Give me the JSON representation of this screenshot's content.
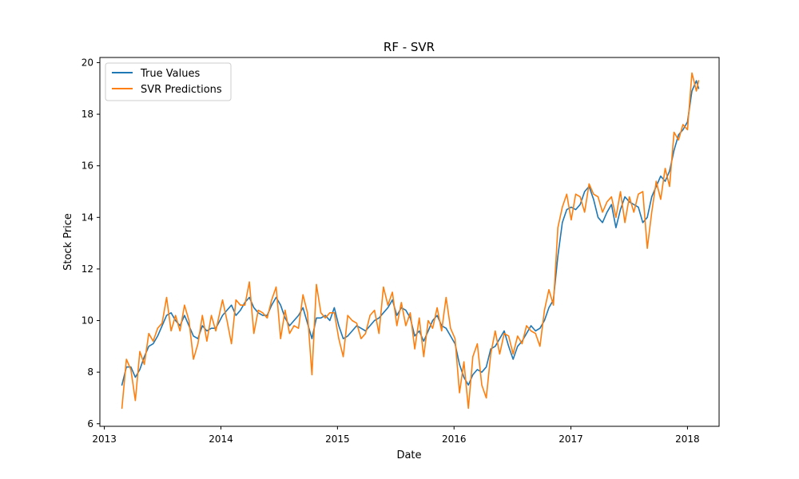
{
  "chart_data": {
    "type": "line",
    "title": "RF - SVR",
    "xlabel": "Date",
    "ylabel": "Stock Price",
    "xlim": [
      "2012-12-18",
      "2018-04-10"
    ],
    "ylim": [
      5.9,
      20.2
    ],
    "x_ticks": [
      "2013-01-01",
      "2014-01-01",
      "2015-01-01",
      "2016-01-01",
      "2017-01-01",
      "2018-01-01"
    ],
    "x_tick_labels": [
      "2013",
      "2014",
      "2015",
      "2016",
      "2017",
      "2018"
    ],
    "y_ticks": [
      6,
      8,
      10,
      12,
      14,
      16,
      18,
      20
    ],
    "y_tick_labels": [
      "6",
      "8",
      "10",
      "12",
      "14",
      "16",
      "18",
      "20"
    ],
    "grid": false,
    "legend_position": "top-left",
    "series": [
      {
        "name": "True Values",
        "color": "#1f77b4",
        "points": [
          [
            "2013-02-25",
            7.5
          ],
          [
            "2013-03-11",
            8.2
          ],
          [
            "2013-03-25",
            8.2
          ],
          [
            "2013-04-08",
            7.8
          ],
          [
            "2013-04-22",
            8.1
          ],
          [
            "2013-05-06",
            8.6
          ],
          [
            "2013-05-20",
            9.0
          ],
          [
            "2013-06-03",
            9.1
          ],
          [
            "2013-06-17",
            9.4
          ],
          [
            "2013-07-01",
            9.8
          ],
          [
            "2013-07-15",
            10.2
          ],
          [
            "2013-07-29",
            10.3
          ],
          [
            "2013-08-12",
            10.0
          ],
          [
            "2013-08-26",
            9.8
          ],
          [
            "2013-09-09",
            10.2
          ],
          [
            "2013-09-23",
            9.8
          ],
          [
            "2013-10-07",
            9.4
          ],
          [
            "2013-10-21",
            9.3
          ],
          [
            "2013-11-04",
            9.8
          ],
          [
            "2013-11-18",
            9.6
          ],
          [
            "2013-12-02",
            9.7
          ],
          [
            "2013-12-16",
            9.7
          ],
          [
            "2014-01-06",
            10.2
          ],
          [
            "2014-01-20",
            10.4
          ],
          [
            "2014-02-03",
            10.6
          ],
          [
            "2014-02-17",
            10.2
          ],
          [
            "2014-03-03",
            10.4
          ],
          [
            "2014-03-17",
            10.7
          ],
          [
            "2014-03-31",
            10.9
          ],
          [
            "2014-04-14",
            10.5
          ],
          [
            "2014-04-28",
            10.3
          ],
          [
            "2014-05-12",
            10.2
          ],
          [
            "2014-05-26",
            10.2
          ],
          [
            "2014-06-09",
            10.6
          ],
          [
            "2014-06-23",
            10.9
          ],
          [
            "2014-07-07",
            10.6
          ],
          [
            "2014-07-21",
            10.1
          ],
          [
            "2014-08-04",
            9.8
          ],
          [
            "2014-08-18",
            10.0
          ],
          [
            "2014-09-01",
            10.2
          ],
          [
            "2014-09-15",
            10.5
          ],
          [
            "2014-09-29",
            9.9
          ],
          [
            "2014-10-13",
            9.3
          ],
          [
            "2014-10-27",
            10.1
          ],
          [
            "2014-11-10",
            10.1
          ],
          [
            "2014-11-24",
            10.2
          ],
          [
            "2014-12-08",
            10.0
          ],
          [
            "2014-12-22",
            10.5
          ],
          [
            "2015-01-05",
            9.8
          ],
          [
            "2015-01-19",
            9.3
          ],
          [
            "2015-02-02",
            9.4
          ],
          [
            "2015-02-16",
            9.6
          ],
          [
            "2015-03-02",
            9.8
          ],
          [
            "2015-03-16",
            9.7
          ],
          [
            "2015-03-30",
            9.6
          ],
          [
            "2015-04-13",
            9.8
          ],
          [
            "2015-04-27",
            10.0
          ],
          [
            "2015-05-11",
            10.1
          ],
          [
            "2015-05-25",
            10.3
          ],
          [
            "2015-06-08",
            10.5
          ],
          [
            "2015-06-22",
            10.8
          ],
          [
            "2015-07-06",
            10.2
          ],
          [
            "2015-07-20",
            10.5
          ],
          [
            "2015-08-03",
            10.4
          ],
          [
            "2015-08-17",
            10.1
          ],
          [
            "2015-08-31",
            9.4
          ],
          [
            "2015-09-14",
            9.6
          ],
          [
            "2015-09-28",
            9.2
          ],
          [
            "2015-10-12",
            9.6
          ],
          [
            "2015-10-26",
            10.0
          ],
          [
            "2015-11-09",
            10.2
          ],
          [
            "2015-11-23",
            9.8
          ],
          [
            "2015-12-07",
            9.7
          ],
          [
            "2015-12-21",
            9.4
          ],
          [
            "2016-01-04",
            9.1
          ],
          [
            "2016-01-18",
            8.3
          ],
          [
            "2016-02-01",
            7.8
          ],
          [
            "2016-02-15",
            7.5
          ],
          [
            "2016-02-29",
            7.9
          ],
          [
            "2016-03-14",
            8.1
          ],
          [
            "2016-03-28",
            8.0
          ],
          [
            "2016-04-11",
            8.2
          ],
          [
            "2016-04-25",
            8.9
          ],
          [
            "2016-05-09",
            9.0
          ],
          [
            "2016-05-23",
            9.3
          ],
          [
            "2016-06-06",
            9.6
          ],
          [
            "2016-06-20",
            9.0
          ],
          [
            "2016-07-04",
            8.5
          ],
          [
            "2016-07-18",
            9.0
          ],
          [
            "2016-08-01",
            9.2
          ],
          [
            "2016-08-15",
            9.5
          ],
          [
            "2016-08-29",
            9.8
          ],
          [
            "2016-09-12",
            9.6
          ],
          [
            "2016-09-26",
            9.7
          ],
          [
            "2016-10-10",
            10.0
          ],
          [
            "2016-10-24",
            10.5
          ],
          [
            "2016-11-07",
            10.8
          ],
          [
            "2016-11-21",
            12.5
          ],
          [
            "2016-12-05",
            13.8
          ],
          [
            "2016-12-19",
            14.3
          ],
          [
            "2017-01-02",
            14.4
          ],
          [
            "2017-01-16",
            14.3
          ],
          [
            "2017-01-30",
            14.5
          ],
          [
            "2017-02-13",
            15.0
          ],
          [
            "2017-02-27",
            15.2
          ],
          [
            "2017-03-13",
            14.7
          ],
          [
            "2017-03-27",
            14.0
          ],
          [
            "2017-04-10",
            13.8
          ],
          [
            "2017-04-24",
            14.2
          ],
          [
            "2017-05-08",
            14.5
          ],
          [
            "2017-05-22",
            13.6
          ],
          [
            "2017-06-05",
            14.3
          ],
          [
            "2017-06-19",
            14.8
          ],
          [
            "2017-07-03",
            14.6
          ],
          [
            "2017-07-17",
            14.5
          ],
          [
            "2017-07-31",
            14.4
          ],
          [
            "2017-08-14",
            13.8
          ],
          [
            "2017-08-28",
            14.0
          ],
          [
            "2017-09-11",
            14.8
          ],
          [
            "2017-09-25",
            15.2
          ],
          [
            "2017-10-09",
            15.6
          ],
          [
            "2017-10-23",
            15.4
          ],
          [
            "2017-11-06",
            15.8
          ],
          [
            "2017-11-20",
            16.6
          ],
          [
            "2017-12-04",
            17.2
          ],
          [
            "2017-12-18",
            17.4
          ],
          [
            "2018-01-01",
            17.7
          ],
          [
            "2018-01-15",
            18.9
          ],
          [
            "2018-01-29",
            19.3
          ],
          [
            "2018-02-05",
            19.0
          ]
        ]
      },
      {
        "name": "SVR Predictions",
        "color": "#ff7f0e",
        "points": [
          [
            "2013-02-25",
            6.6
          ],
          [
            "2013-03-11",
            8.5
          ],
          [
            "2013-03-25",
            8.1
          ],
          [
            "2013-04-08",
            6.9
          ],
          [
            "2013-04-22",
            8.8
          ],
          [
            "2013-05-06",
            8.3
          ],
          [
            "2013-05-20",
            9.5
          ],
          [
            "2013-06-03",
            9.2
          ],
          [
            "2013-06-17",
            9.7
          ],
          [
            "2013-07-01",
            9.9
          ],
          [
            "2013-07-15",
            10.9
          ],
          [
            "2013-07-29",
            9.6
          ],
          [
            "2013-08-12",
            10.2
          ],
          [
            "2013-08-26",
            9.6
          ],
          [
            "2013-09-09",
            10.6
          ],
          [
            "2013-09-23",
            10.0
          ],
          [
            "2013-10-07",
            8.5
          ],
          [
            "2013-10-21",
            9.1
          ],
          [
            "2013-11-04",
            10.2
          ],
          [
            "2013-11-18",
            9.2
          ],
          [
            "2013-12-02",
            10.2
          ],
          [
            "2013-12-16",
            9.6
          ],
          [
            "2014-01-06",
            10.8
          ],
          [
            "2014-01-20",
            10.0
          ],
          [
            "2014-02-03",
            9.1
          ],
          [
            "2014-02-17",
            10.8
          ],
          [
            "2014-03-03",
            10.6
          ],
          [
            "2014-03-17",
            10.6
          ],
          [
            "2014-03-31",
            11.5
          ],
          [
            "2014-04-14",
            9.5
          ],
          [
            "2014-04-28",
            10.4
          ],
          [
            "2014-05-12",
            10.3
          ],
          [
            "2014-05-26",
            10.1
          ],
          [
            "2014-06-09",
            10.8
          ],
          [
            "2014-06-23",
            11.3
          ],
          [
            "2014-07-07",
            9.3
          ],
          [
            "2014-07-21",
            10.4
          ],
          [
            "2014-08-04",
            9.5
          ],
          [
            "2014-08-18",
            9.8
          ],
          [
            "2014-09-01",
            9.7
          ],
          [
            "2014-09-15",
            11.0
          ],
          [
            "2014-09-29",
            10.3
          ],
          [
            "2014-10-13",
            7.9
          ],
          [
            "2014-10-27",
            11.4
          ],
          [
            "2014-11-10",
            10.3
          ],
          [
            "2014-11-24",
            10.1
          ],
          [
            "2014-12-08",
            10.3
          ],
          [
            "2014-12-22",
            10.3
          ],
          [
            "2015-01-05",
            9.3
          ],
          [
            "2015-01-19",
            8.6
          ],
          [
            "2015-02-02",
            10.2
          ],
          [
            "2015-02-16",
            10.0
          ],
          [
            "2015-03-02",
            9.9
          ],
          [
            "2015-03-16",
            9.3
          ],
          [
            "2015-03-30",
            9.5
          ],
          [
            "2015-04-13",
            10.2
          ],
          [
            "2015-04-27",
            10.4
          ],
          [
            "2015-05-11",
            9.5
          ],
          [
            "2015-05-25",
            11.3
          ],
          [
            "2015-06-08",
            10.6
          ],
          [
            "2015-06-22",
            11.1
          ],
          [
            "2015-07-06",
            9.8
          ],
          [
            "2015-07-20",
            10.7
          ],
          [
            "2015-08-03",
            9.8
          ],
          [
            "2015-08-17",
            10.3
          ],
          [
            "2015-08-31",
            8.9
          ],
          [
            "2015-09-14",
            10.1
          ],
          [
            "2015-09-28",
            8.6
          ],
          [
            "2015-10-12",
            10.0
          ],
          [
            "2015-10-26",
            9.7
          ],
          [
            "2015-11-09",
            10.5
          ],
          [
            "2015-11-23",
            9.6
          ],
          [
            "2015-12-07",
            10.9
          ],
          [
            "2015-12-21",
            9.7
          ],
          [
            "2016-01-04",
            9.3
          ],
          [
            "2016-01-18",
            7.2
          ],
          [
            "2016-02-01",
            8.4
          ],
          [
            "2016-02-15",
            6.6
          ],
          [
            "2016-02-29",
            8.6
          ],
          [
            "2016-03-14",
            9.1
          ],
          [
            "2016-03-28",
            7.5
          ],
          [
            "2016-04-11",
            7.0
          ],
          [
            "2016-04-25",
            8.7
          ],
          [
            "2016-05-09",
            9.6
          ],
          [
            "2016-05-23",
            8.7
          ],
          [
            "2016-06-06",
            9.5
          ],
          [
            "2016-06-20",
            9.4
          ],
          [
            "2016-07-04",
            8.7
          ],
          [
            "2016-07-18",
            9.4
          ],
          [
            "2016-08-01",
            9.1
          ],
          [
            "2016-08-15",
            9.8
          ],
          [
            "2016-08-29",
            9.6
          ],
          [
            "2016-09-12",
            9.5
          ],
          [
            "2016-09-26",
            9.0
          ],
          [
            "2016-10-10",
            10.4
          ],
          [
            "2016-10-24",
            11.2
          ],
          [
            "2016-11-07",
            10.6
          ],
          [
            "2016-11-21",
            13.6
          ],
          [
            "2016-12-05",
            14.4
          ],
          [
            "2016-12-19",
            14.9
          ],
          [
            "2017-01-02",
            13.9
          ],
          [
            "2017-01-16",
            14.9
          ],
          [
            "2017-01-30",
            14.8
          ],
          [
            "2017-02-13",
            14.2
          ],
          [
            "2017-02-27",
            15.3
          ],
          [
            "2017-03-13",
            14.9
          ],
          [
            "2017-03-27",
            14.8
          ],
          [
            "2017-04-10",
            14.2
          ],
          [
            "2017-04-24",
            14.6
          ],
          [
            "2017-05-08",
            14.8
          ],
          [
            "2017-05-22",
            14.0
          ],
          [
            "2017-06-05",
            15.0
          ],
          [
            "2017-06-19",
            13.8
          ],
          [
            "2017-07-03",
            14.8
          ],
          [
            "2017-07-17",
            14.2
          ],
          [
            "2017-07-31",
            14.9
          ],
          [
            "2017-08-14",
            15.0
          ],
          [
            "2017-08-28",
            12.8
          ],
          [
            "2017-09-11",
            14.2
          ],
          [
            "2017-09-25",
            15.4
          ],
          [
            "2017-10-09",
            14.7
          ],
          [
            "2017-10-23",
            15.9
          ],
          [
            "2017-11-06",
            15.2
          ],
          [
            "2017-11-20",
            17.3
          ],
          [
            "2017-12-04",
            17.0
          ],
          [
            "2017-12-18",
            17.6
          ],
          [
            "2018-01-01",
            17.4
          ],
          [
            "2018-01-15",
            19.6
          ],
          [
            "2018-01-29",
            18.9
          ],
          [
            "2018-02-05",
            19.3
          ]
        ]
      }
    ]
  }
}
